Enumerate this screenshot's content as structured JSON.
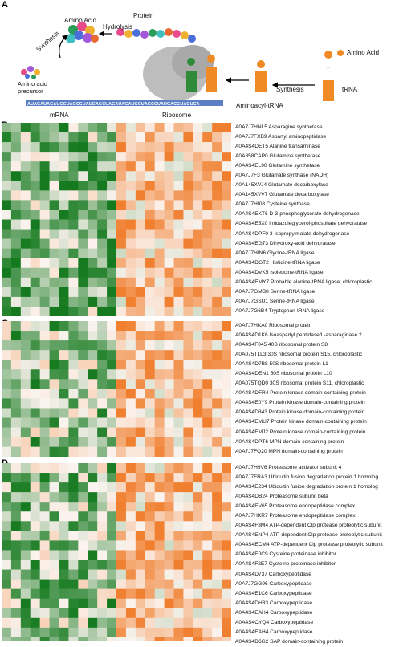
{
  "panel_a": {
    "letter": "A",
    "labels": {
      "amino_acid_top": "Amino Acid",
      "protein": "Protein",
      "hydrolysis": "Hydrolysis",
      "synthesis_left": "Synthesis",
      "precursor": "Amino acid\nprecursor",
      "mrna": "mRNA",
      "ribosome": "Ribosome",
      "aminoacyl_trna": "Aminoacyl-tRNA",
      "synthesis_right": "Synthesis",
      "amino_acid_right": "Amino Acid",
      "plus": "+",
      "trna": "tRNA"
    },
    "mrna_sequence": "AUAGAUAGAUGCUAGCCUAUGAGCUAGAUAGAUGCUAGCCUAUGACGUAGUCA"
  },
  "panels": [
    {
      "letter": "B",
      "rows": [
        "A0A7J7HNL5 Asparagine synthetase",
        "A0A7J7FXB9 Aspartyl aminopeptidase",
        "A0A4S4DET5 Alanine transaminase",
        "A0A858CAP0 Glutamine synthetase",
        "A0A4S4EL90 Glutamine synthetase",
        "A0A7J7F3 Glutamate synthase (NADH)",
        "A0A145XVJ4 Glutamate decarboxylase",
        "A0A145XVV7 Glutamate decarboxylase",
        "A0A7J7HI08 Cysteine synthase",
        "A0A4S4EKT6 D-3-phosphoglycerate dehydrogenase",
        "A0A4S4E5X0 Imidazoleglycerol-phosphate dehydratase",
        "A0A4S4DPF0 3-isopropylmalate dehydrogenase",
        "A0A4S4EG73 Dihydroxy-acid dehydratase",
        "A0A7J7HIN6 Glycine-tRNA ligase",
        "A0A4S4DGT2 Histidine-tRNA ligase",
        "A0A4S4DVK5 Isoleucine-tRNA ligase",
        "A0A4S4EMY7 Probable alanine-tRNA ligase, chloroplastic",
        "A0A7J7GMB8 Serine-tRNA ligase",
        "A0A7J7GSU1 Serine-tRNA ligase",
        "A0A7J7G6B4 Tryptophan-tRNA ligase"
      ]
    },
    {
      "letter": "C",
      "rows": [
        "A0A7J7HKA0 Ribosomal protein",
        "A0A4S4D1K6 Isoaspartyl peptidase/L-asparaginase 2",
        "A0A4S4F045 40S ribosomal protein S8",
        "A0A075TLL3 30S ribosomal protein S15, chloroplastic",
        "A0A4S4D7B8 50S ribosomal protein L1",
        "A0A4S4DEN1 50S ribosomal protein L10",
        "A0A075TQD0 30S ribosomal protein S11, chloroplastic",
        "A0A4S4DFR4 Protein kinase domain-containing protein",
        "A0A4S4E0Y9 Protein kinase domain-containing protein",
        "A0A4S4D343 Protein kinase domain-containing protein",
        "A0A4S4EMU7 Protein kinase domain-containing protein",
        "A0A4S4EMJ2 Protein kinase domain-containing protein",
        "A0A4S4DPT6 MPN domain-containing protein",
        "A0A7J7FQ20 MPN domain-containing protein"
      ]
    },
    {
      "letter": "D",
      "rows": [
        "A0A7J7H9V6 Proteasome activator subunit 4",
        "A0A7J7FRA3 Ubiquitin fusion degradation protein 1 homolog",
        "A0A4S4E234 Ubiquitin fusion degradation protein 1 homolog",
        "A0A4S4DB24 Proteasome subunit beta",
        "A0A4S4EV65 Proteasome endopeptidase complex",
        "A0A7J7HKR7 Proteasome endopeptidase complex",
        "A0A4S4F3M4 ATP-dependent Clp protease proteolytic subunit",
        "A0A4S4ENP4 ATP-dependent Clp protease proteolytic subunit",
        "A0A4S4ECM4 ATP-dependent Clp protease proteolytic subunit",
        "A0A4S4E0C9 Cysteine proteinase inhibitor",
        "A0A4S4F2E7 Cysteine proteinase inhibitor",
        "A0A4S4D737 Carboxypeptidase",
        "A0A7J7GG96 Carboxypeptidase",
        "A0A4S4E1C6 Carboxypeptidase",
        "A0A4S4DH33 Carboxypeptidase",
        "A0A4S4EAH4 Carboxypeptidase",
        "A0A4S4CYQ4 Carboxypeptidase",
        "A0A4S4EAH4 Carboxypeptidase",
        "A0A4S4D6G2 SAP domain-containing protein"
      ]
    }
  ],
  "colors": {
    "high": "#f08030",
    "mid": "#fbf3ef",
    "low": "#157a1f",
    "trna_orange": "#f08a24",
    "trna_green": "#2f8a3a",
    "mrna_blue": "#5b7fc4"
  }
}
